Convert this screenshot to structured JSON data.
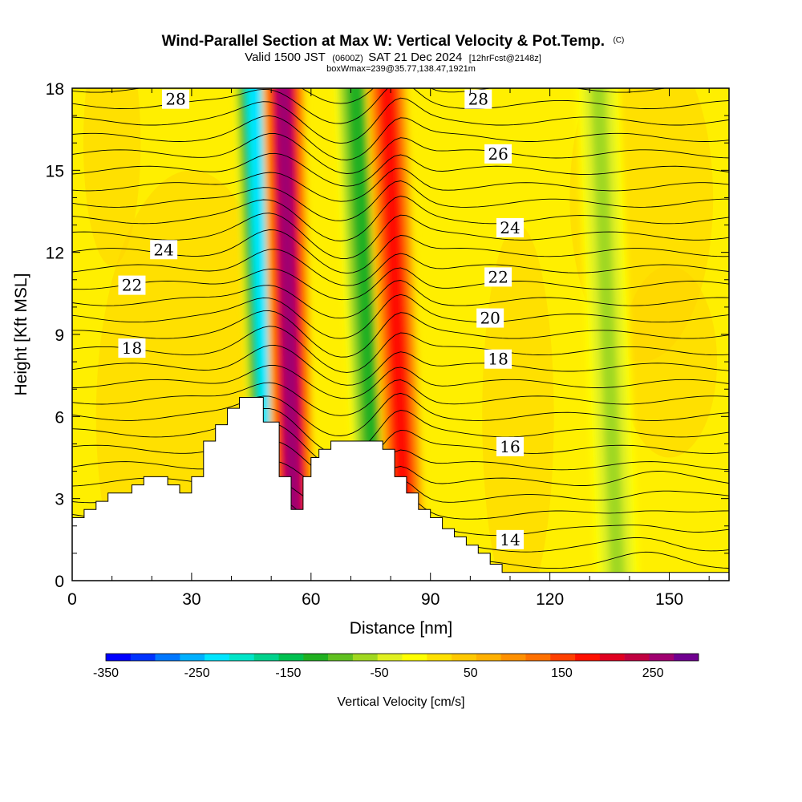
{
  "chart_data": {
    "type": "heatmap",
    "title": "Wind-Parallel Section at Max W: Vertical Velocity & Pot.Temp.",
    "title_mark": "(C)",
    "subtitle": {
      "valid": "Valid 1500 JST",
      "utc": "(0600Z)",
      "date": "SAT 21 Dec 2024",
      "fcst": "[12hrFcst@2148z]"
    },
    "box_info": "boxWmax=239@35.77,138.47,1921m",
    "xlabel": "Distance [nm]",
    "ylabel": "Height [Kft MSL]",
    "xlim": [
      0,
      165
    ],
    "ylim": [
      0,
      18
    ],
    "x_ticks": [
      0,
      30,
      60,
      90,
      120,
      150
    ],
    "y_ticks": [
      0,
      3,
      6,
      9,
      12,
      15,
      18
    ],
    "colorbar": {
      "label": "Vertical Velocity [cm/s]",
      "ticks": [
        -350,
        -250,
        -150,
        -50,
        50,
        150,
        250
      ],
      "range": [
        -350,
        300
      ],
      "colors": [
        "#0000ff",
        "#0033ff",
        "#0077ff",
        "#00b0ff",
        "#00e5ff",
        "#00e5c8",
        "#00d28c",
        "#00c050",
        "#20b020",
        "#60c020",
        "#a0d820",
        "#e0f020",
        "#ffff00",
        "#ffe000",
        "#ffc800",
        "#ffb000",
        "#ff9000",
        "#ff7000",
        "#ff4000",
        "#ff1000",
        "#e00020",
        "#c00040",
        "#a00070",
        "#700090"
      ]
    },
    "velocity_bands": [
      {
        "x_bottom": 51,
        "x_top": 46,
        "w": -230
      },
      {
        "x_bottom": 56,
        "x_top": 53,
        "w": 250
      },
      {
        "x_bottom": 77,
        "x_top": 71,
        "w": -110
      },
      {
        "x_bottom": 84,
        "x_top": 79,
        "w": 170
      },
      {
        "x_bottom": 137,
        "x_top": 132,
        "w": -60
      }
    ],
    "theta_contours": [
      {
        "label": "14",
        "at": [
          110,
          1.5
        ]
      },
      {
        "label": "16",
        "at": [
          110,
          4.9
        ]
      },
      {
        "label": "18",
        "at": [
          15,
          8.5
        ]
      },
      {
        "label": "18",
        "at": [
          107,
          8.1
        ]
      },
      {
        "label": "20",
        "at": [
          105,
          9.6
        ]
      },
      {
        "label": "22",
        "at": [
          15,
          10.8
        ]
      },
      {
        "label": "22",
        "at": [
          107,
          11.1
        ]
      },
      {
        "label": "24",
        "at": [
          23,
          12.1
        ]
      },
      {
        "label": "24",
        "at": [
          110,
          12.9
        ]
      },
      {
        "label": "26",
        "at": [
          107,
          15.6
        ]
      },
      {
        "label": "28",
        "at": [
          26,
          17.6
        ]
      },
      {
        "label": "28",
        "at": [
          102,
          17.6
        ]
      }
    ],
    "terrain": [
      [
        0,
        2.3
      ],
      [
        3,
        2.3
      ],
      [
        3,
        2.6
      ],
      [
        6,
        2.6
      ],
      [
        6,
        2.9
      ],
      [
        9,
        2.9
      ],
      [
        9,
        3.2
      ],
      [
        15,
        3.2
      ],
      [
        15,
        3.5
      ],
      [
        18,
        3.5
      ],
      [
        18,
        3.8
      ],
      [
        24,
        3.8
      ],
      [
        24,
        3.5
      ],
      [
        27,
        3.5
      ],
      [
        27,
        3.2
      ],
      [
        30,
        3.2
      ],
      [
        30,
        3.8
      ],
      [
        33,
        3.8
      ],
      [
        33,
        5.1
      ],
      [
        36,
        5.1
      ],
      [
        36,
        5.7
      ],
      [
        39,
        5.7
      ],
      [
        39,
        6.3
      ],
      [
        42,
        6.3
      ],
      [
        42,
        6.7
      ],
      [
        48,
        6.7
      ],
      [
        48,
        5.8
      ],
      [
        52,
        5.8
      ],
      [
        52,
        3.8
      ],
      [
        55,
        3.8
      ],
      [
        55,
        2.6
      ],
      [
        58,
        2.6
      ],
      [
        58,
        3.8
      ],
      [
        60,
        3.8
      ],
      [
        60,
        4.5
      ],
      [
        62,
        4.5
      ],
      [
        62,
        4.8
      ],
      [
        65,
        4.8
      ],
      [
        65,
        5.1
      ],
      [
        78,
        5.1
      ],
      [
        78,
        4.8
      ],
      [
        81,
        4.8
      ],
      [
        81,
        3.8
      ],
      [
        84,
        3.8
      ],
      [
        84,
        3.2
      ],
      [
        87,
        3.2
      ],
      [
        87,
        2.6
      ],
      [
        90,
        2.6
      ],
      [
        90,
        2.3
      ],
      [
        93,
        2.3
      ],
      [
        93,
        1.9
      ],
      [
        96,
        1.9
      ],
      [
        96,
        1.6
      ],
      [
        99,
        1.6
      ],
      [
        99,
        1.3
      ],
      [
        102,
        1.3
      ],
      [
        102,
        1.0
      ],
      [
        105,
        1.0
      ],
      [
        105,
        0.6
      ],
      [
        108,
        0.6
      ],
      [
        108,
        0.3
      ],
      [
        165,
        0.3
      ],
      [
        165,
        0
      ]
    ]
  }
}
